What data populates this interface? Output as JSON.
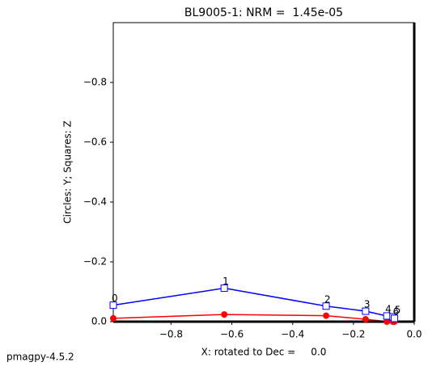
{
  "chart_data": {
    "type": "zijderveld",
    "title": "BL9005-1: NRM =  1.45e-05",
    "xlabel": "X: rotated to Dec =     0.0",
    "ylabel": "Circles: Y; Squares: Z",
    "footer": "pmagpy-4.5.2",
    "x": [
      -0.99,
      -0.625,
      -0.29,
      -0.16,
      -0.09,
      -0.07,
      -0.065
    ],
    "point_labels": [
      "0",
      "1",
      "2",
      "3",
      "4",
      "5",
      "6"
    ],
    "series": [
      {
        "marker": "circle",
        "color": "#ff0000",
        "values": [
          -0.011,
          -0.024,
          -0.02,
          -0.008,
          0.0,
          0.0,
          0.0
        ]
      },
      {
        "marker": "square",
        "color": "#0000ff",
        "values": [
          -0.055,
          -0.112,
          -0.052,
          -0.035,
          -0.019,
          -0.016,
          -0.011
        ]
      }
    ],
    "xlim": [
      -0.99,
      0.0
    ],
    "ylim": [
      0.0,
      -1.0
    ],
    "xticks": [
      {
        "value": -0.8,
        "label": "−0.8"
      },
      {
        "value": -0.6,
        "label": "−0.6"
      },
      {
        "value": -0.4,
        "label": "−0.4"
      },
      {
        "value": -0.2,
        "label": "−0.2"
      },
      {
        "value": 0,
        "label": "0.0"
      }
    ],
    "yticks": [
      {
        "value": 0,
        "label": "0.0"
      },
      {
        "value": -0.2,
        "label": "−0.2"
      },
      {
        "value": -0.4,
        "label": "−0.4"
      },
      {
        "value": -0.6,
        "label": "−0.6"
      },
      {
        "value": -0.8,
        "label": "−0.8"
      }
    ]
  }
}
